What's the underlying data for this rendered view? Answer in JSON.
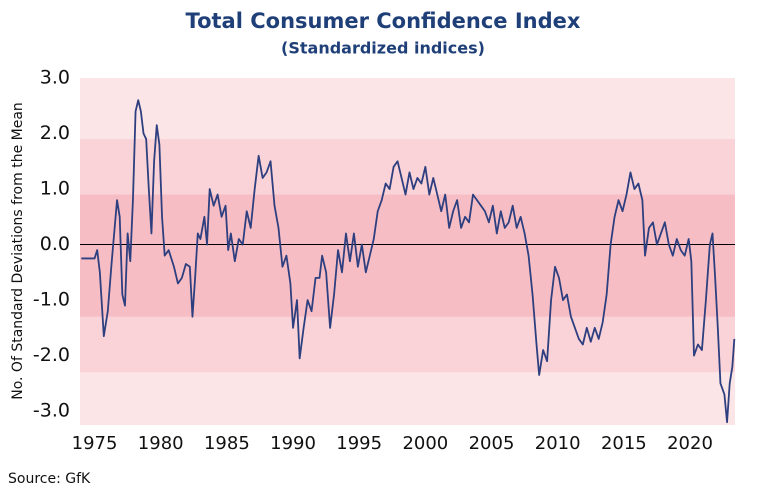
{
  "chart_data": {
    "type": "line",
    "title": "Total Consumer Confidence Index",
    "subtitle": "(Standardized indices)",
    "y_label": "No. Of Standard Deviations from the Mean",
    "source": "Source: GfK",
    "color": "#2e3f80",
    "background": "#fce5e7",
    "bands": [
      {
        "from": -2.3,
        "to": 1.9,
        "color": "#f9d3d7"
      },
      {
        "from": -1.3,
        "to": 0.9,
        "color": "#f6bec4"
      }
    ],
    "reference_line": 0,
    "xlim": [
      1973.9,
      2023.4
    ],
    "xticks": [
      1975,
      1980,
      1985,
      1990,
      1995,
      2000,
      2005,
      2010,
      2015,
      2020
    ],
    "ylim": [
      -3.25,
      3.0
    ],
    "yticks": [
      {
        "value": 3,
        "label": "3.0"
      },
      {
        "value": 2,
        "label": "2.0"
      },
      {
        "value": 1,
        "label": "1.0"
      },
      {
        "value": 0,
        "label": "0.0"
      },
      {
        "value": -1,
        "label": "-1.0"
      },
      {
        "value": -2,
        "label": "-2.0"
      },
      {
        "value": -3,
        "label": "-3.0"
      }
    ],
    "x": [
      1974.0,
      1974.5,
      1975.0,
      1975.2,
      1975.4,
      1975.7,
      1976.0,
      1976.3,
      1976.7,
      1976.9,
      1977.1,
      1977.3,
      1977.5,
      1977.7,
      1977.9,
      1978.1,
      1978.3,
      1978.5,
      1978.7,
      1978.9,
      1979.1,
      1979.3,
      1979.5,
      1979.7,
      1979.9,
      1980.1,
      1980.3,
      1980.6,
      1981.0,
      1981.3,
      1981.6,
      1981.9,
      1982.2,
      1982.4,
      1982.6,
      1982.8,
      1983.0,
      1983.3,
      1983.5,
      1983.7,
      1984.0,
      1984.3,
      1984.6,
      1984.9,
      1985.1,
      1985.3,
      1985.6,
      1985.9,
      1986.2,
      1986.5,
      1986.8,
      1987.1,
      1987.4,
      1987.7,
      1988.0,
      1988.3,
      1988.6,
      1988.9,
      1989.2,
      1989.5,
      1989.8,
      1990.0,
      1990.3,
      1990.5,
      1990.8,
      1991.1,
      1991.4,
      1991.7,
      1992.0,
      1992.2,
      1992.5,
      1992.8,
      1993.1,
      1993.4,
      1993.7,
      1994.0,
      1994.3,
      1994.6,
      1994.9,
      1995.2,
      1995.5,
      1995.8,
      1996.1,
      1996.4,
      1996.7,
      1997.0,
      1997.3,
      1997.6,
      1997.9,
      1998.2,
      1998.5,
      1998.8,
      1999.1,
      1999.4,
      1999.7,
      2000.0,
      2000.3,
      2000.6,
      2000.9,
      2001.2,
      2001.5,
      2001.8,
      2002.1,
      2002.4,
      2002.7,
      2003.0,
      2003.3,
      2003.6,
      2003.9,
      2004.2,
      2004.5,
      2004.8,
      2005.1,
      2005.4,
      2005.7,
      2006.0,
      2006.3,
      2006.6,
      2006.9,
      2007.2,
      2007.5,
      2007.8,
      2008.1,
      2008.4,
      2008.6,
      2008.9,
      2009.2,
      2009.5,
      2009.8,
      2010.1,
      2010.4,
      2010.7,
      2011.0,
      2011.3,
      2011.6,
      2011.9,
      2012.2,
      2012.5,
      2012.8,
      2013.1,
      2013.4,
      2013.7,
      2014.0,
      2014.3,
      2014.6,
      2014.9,
      2015.2,
      2015.5,
      2015.8,
      2016.1,
      2016.4,
      2016.6,
      2016.9,
      2017.2,
      2017.5,
      2017.8,
      2018.1,
      2018.4,
      2018.7,
      2019.0,
      2019.3,
      2019.6,
      2019.9,
      2020.1,
      2020.3,
      2020.6,
      2020.9,
      2021.2,
      2021.5,
      2021.7,
      2021.9,
      2022.1,
      2022.3,
      2022.6,
      2022.8,
      2023.0,
      2023.2,
      2023.35
    ],
    "values": [
      -0.25,
      -0.25,
      -0.25,
      -0.1,
      -0.5,
      -1.65,
      -1.2,
      -0.3,
      0.8,
      0.5,
      -0.9,
      -1.1,
      0.2,
      -0.3,
      0.8,
      2.4,
      2.6,
      2.4,
      2.0,
      1.9,
      1.0,
      0.2,
      1.5,
      2.15,
      1.8,
      0.5,
      -0.2,
      -0.1,
      -0.4,
      -0.7,
      -0.6,
      -0.35,
      -0.4,
      -1.3,
      -0.6,
      0.2,
      0.1,
      0.5,
      0.0,
      1.0,
      0.7,
      0.9,
      0.5,
      0.7,
      -0.1,
      0.2,
      -0.3,
      0.1,
      0.0,
      0.6,
      0.3,
      1.0,
      1.6,
      1.2,
      1.3,
      1.5,
      0.7,
      0.3,
      -0.4,
      -0.2,
      -0.7,
      -1.5,
      -1.0,
      -2.05,
      -1.5,
      -1.0,
      -1.2,
      -0.6,
      -0.6,
      -0.2,
      -0.5,
      -1.5,
      -0.9,
      -0.1,
      -0.5,
      0.2,
      -0.3,
      0.2,
      -0.4,
      0.0,
      -0.5,
      -0.2,
      0.1,
      0.6,
      0.8,
      1.1,
      1.0,
      1.4,
      1.5,
      1.2,
      0.9,
      1.3,
      1.0,
      1.2,
      1.1,
      1.4,
      0.9,
      1.2,
      0.9,
      0.6,
      0.9,
      0.3,
      0.6,
      0.8,
      0.3,
      0.5,
      0.4,
      0.9,
      0.8,
      0.7,
      0.6,
      0.4,
      0.7,
      0.2,
      0.6,
      0.3,
      0.4,
      0.7,
      0.3,
      0.5,
      0.2,
      -0.2,
      -0.9,
      -1.8,
      -2.35,
      -1.9,
      -2.1,
      -1.0,
      -0.4,
      -0.6,
      -1.0,
      -0.9,
      -1.3,
      -1.5,
      -1.7,
      -1.8,
      -1.5,
      -1.75,
      -1.5,
      -1.7,
      -1.4,
      -0.9,
      0.0,
      0.5,
      0.8,
      0.6,
      0.9,
      1.3,
      1.0,
      1.1,
      0.8,
      -0.2,
      0.3,
      0.4,
      0.0,
      0.2,
      0.4,
      0.0,
      -0.2,
      0.1,
      -0.1,
      -0.2,
      0.1,
      -0.3,
      -2.0,
      -1.8,
      -1.9,
      -1.0,
      0.0,
      0.2,
      -0.6,
      -1.5,
      -2.5,
      -2.7,
      -3.2,
      -2.5,
      -2.2,
      -1.7
    ]
  }
}
